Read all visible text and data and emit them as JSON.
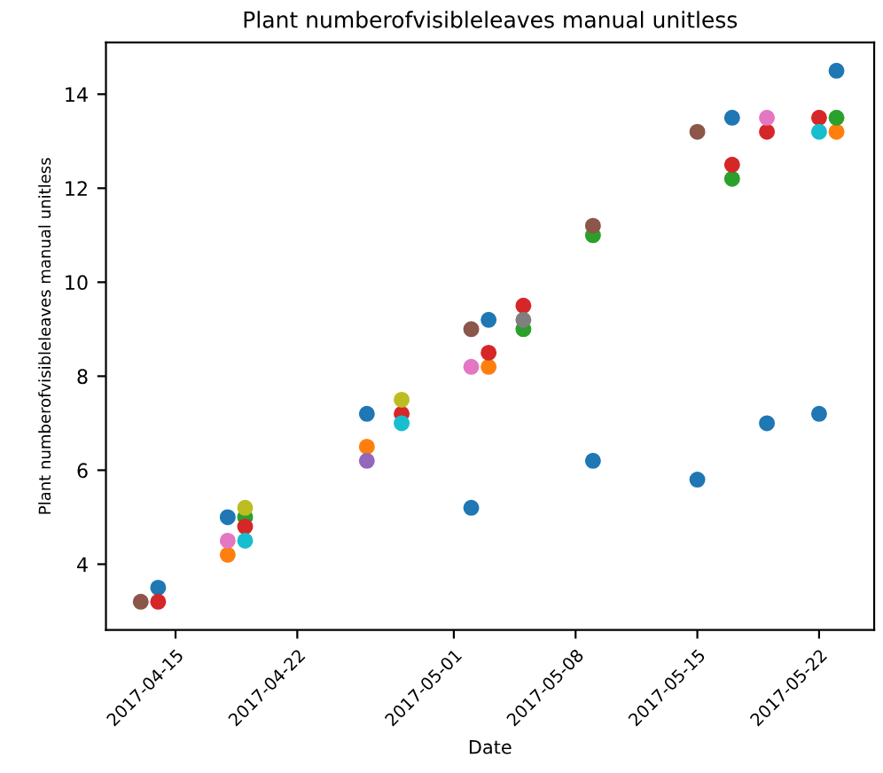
{
  "chart_data": {
    "type": "scatter",
    "title": "Plant numberofvisibleleaves manual unitless",
    "xlabel": "Date",
    "ylabel": "Plant numberofvisibleleaves manual unitless",
    "marker": "circle",
    "grid": false,
    "xlim": [
      "2017-04-11",
      "2017-05-25T04:00"
    ],
    "xticks": [
      {
        "value": "2017-04-15",
        "label": "2017-04-15"
      },
      {
        "value": "2017-04-22",
        "label": "2017-04-22"
      },
      {
        "value": "2017-05-01",
        "label": "2017-05-01"
      },
      {
        "value": "2017-05-08",
        "label": "2017-05-08"
      },
      {
        "value": "2017-05-15",
        "label": "2017-05-15"
      },
      {
        "value": "2017-05-22",
        "label": "2017-05-22"
      }
    ],
    "ylim": [
      2.6,
      15.1
    ],
    "yticks": [
      4,
      6,
      8,
      10,
      12,
      14
    ],
    "series": [
      {
        "color": "#1f77b4",
        "x": [
          "2017-04-14",
          "2017-04-18",
          "2017-04-26",
          "2017-05-02",
          "2017-05-03",
          "2017-05-09",
          "2017-05-15",
          "2017-05-17",
          "2017-05-19",
          "2017-05-22",
          "2017-05-23"
        ],
        "values": [
          3.5,
          5.0,
          7.2,
          5.2,
          9.2,
          6.2,
          5.8,
          13.5,
          7.0,
          7.2,
          14.5
        ]
      },
      {
        "color": "#ff7f0e",
        "x": [
          "2017-04-18",
          "2017-04-26",
          "2017-05-03",
          "2017-05-23"
        ],
        "values": [
          4.2,
          6.5,
          8.2,
          13.2
        ]
      },
      {
        "color": "#2ca02c",
        "x": [
          "2017-04-19",
          "2017-05-05",
          "2017-05-09",
          "2017-05-17",
          "2017-05-23"
        ],
        "values": [
          5.0,
          9.0,
          11.0,
          12.2,
          13.5
        ]
      },
      {
        "color": "#d62728",
        "x": [
          "2017-04-14",
          "2017-04-19",
          "2017-04-28",
          "2017-05-03",
          "2017-05-05",
          "2017-05-17",
          "2017-05-19",
          "2017-05-22"
        ],
        "values": [
          3.2,
          4.8,
          7.2,
          8.5,
          9.5,
          12.5,
          13.2,
          13.5
        ]
      },
      {
        "color": "#9467bd",
        "x": [
          "2017-04-26"
        ],
        "values": [
          6.2
        ]
      },
      {
        "color": "#8c564b",
        "x": [
          "2017-04-13",
          "2017-05-02",
          "2017-05-09",
          "2017-05-15"
        ],
        "values": [
          3.2,
          9.0,
          11.2,
          13.2
        ]
      },
      {
        "color": "#e377c2",
        "x": [
          "2017-04-18",
          "2017-05-02",
          "2017-05-19"
        ],
        "values": [
          4.5,
          8.2,
          13.5
        ]
      },
      {
        "color": "#7f7f7f",
        "x": [
          "2017-05-05"
        ],
        "values": [
          9.2
        ]
      },
      {
        "color": "#bcbd22",
        "x": [
          "2017-04-19",
          "2017-04-28"
        ],
        "values": [
          5.2,
          7.5
        ]
      },
      {
        "color": "#17becf",
        "x": [
          "2017-04-19",
          "2017-04-28",
          "2017-05-22"
        ],
        "values": [
          4.5,
          7.0,
          13.2
        ]
      }
    ]
  }
}
